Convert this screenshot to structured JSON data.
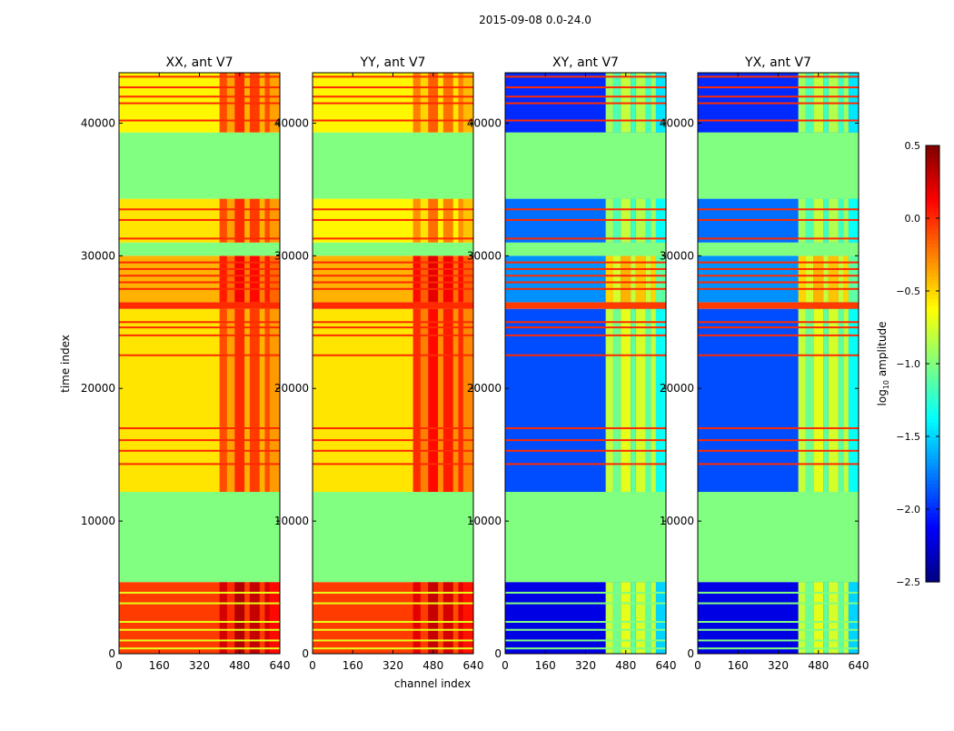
{
  "chart_data": {
    "type": "heatmap",
    "title": "2015-09-08 0.0-24.0",
    "xlabel": "channel index",
    "ylabel": "time index",
    "xlim": [
      0,
      640
    ],
    "ylim": [
      0,
      43800
    ],
    "xticks": [
      "0",
      "160",
      "320",
      "480",
      "640"
    ],
    "xtick_values": [
      0,
      160,
      320,
      480,
      640
    ],
    "yticks": [
      "0",
      "10000",
      "20000",
      "30000",
      "40000"
    ],
    "ytick_values": [
      0,
      10000,
      20000,
      30000,
      40000
    ],
    "colormap": "jet",
    "colorbar": {
      "label_main": "log",
      "label_sub": "10",
      "label_rest": " amplitude",
      "range": [
        -2.5,
        0.5
      ],
      "ticks": [
        "0.5",
        "0.0",
        "−0.5",
        "−1.0",
        "−1.5",
        "−2.0",
        "−2.5"
      ],
      "tick_values": [
        0.5,
        0.0,
        -0.5,
        -1.0,
        -1.5,
        -2.0,
        -2.5
      ]
    },
    "bright_channel_range": [
      400,
      600
    ],
    "panels": [
      {
        "title": "XX, ant V7",
        "segments": [
          [
            0,
            5400,
            -0.05,
            0.25
          ],
          [
            5400,
            12200,
            -1.0,
            -1.0
          ],
          [
            12200,
            26000,
            -0.55,
            -0.1
          ],
          [
            26000,
            26500,
            0.0,
            0.0
          ],
          [
            26500,
            30000,
            -0.4,
            0.05
          ],
          [
            30000,
            31000,
            -1.0,
            -1.0
          ],
          [
            31000,
            34300,
            -0.55,
            -0.1
          ],
          [
            34300,
            39300,
            -1.0,
            -1.0
          ],
          [
            39300,
            43800,
            -0.6,
            -0.1
          ]
        ]
      },
      {
        "title": "YY, ant V7",
        "segments": [
          [
            0,
            5400,
            -0.05,
            0.2
          ],
          [
            5400,
            12200,
            -1.0,
            -1.0
          ],
          [
            12200,
            26000,
            -0.55,
            0.0
          ],
          [
            26000,
            26500,
            0.0,
            0.0
          ],
          [
            26500,
            30000,
            -0.4,
            0.1
          ],
          [
            30000,
            31000,
            -1.0,
            -1.0
          ],
          [
            31000,
            34300,
            -0.6,
            -0.3
          ],
          [
            34300,
            39300,
            -1.0,
            -1.0
          ],
          [
            39300,
            43800,
            -0.6,
            -0.25
          ]
        ]
      },
      {
        "title": "XY, ant V7",
        "segments": [
          [
            0,
            5400,
            -2.2,
            -0.8
          ],
          [
            5400,
            12200,
            -1.0,
            -1.0
          ],
          [
            12200,
            26000,
            -1.9,
            -0.8
          ],
          [
            26000,
            26500,
            -0.05,
            -0.05
          ],
          [
            26500,
            30000,
            -1.7,
            -0.5
          ],
          [
            30000,
            31000,
            -1.0,
            -1.0
          ],
          [
            31000,
            34300,
            -1.8,
            -0.9
          ],
          [
            34300,
            39300,
            -1.0,
            -1.0
          ],
          [
            39300,
            43800,
            -2.0,
            -0.9
          ]
        ]
      },
      {
        "title": "YX, ant V7",
        "segments": [
          [
            0,
            5400,
            -2.2,
            -0.8
          ],
          [
            5400,
            12200,
            -1.0,
            -1.0
          ],
          [
            12200,
            26000,
            -1.9,
            -0.8
          ],
          [
            26000,
            26500,
            -0.05,
            -0.05
          ],
          [
            26500,
            30000,
            -1.7,
            -0.5
          ],
          [
            30000,
            31000,
            -1.0,
            -1.0
          ],
          [
            31000,
            34300,
            -1.8,
            -0.9
          ],
          [
            34300,
            39300,
            -1.0,
            -1.0
          ],
          [
            39300,
            43800,
            -2.0,
            -0.9
          ]
        ]
      }
    ],
    "rfi_lines": [
      14300,
      15300,
      16100,
      17000,
      22500,
      24000,
      24600,
      25000,
      27500,
      28000,
      28500,
      29000,
      29500,
      31300,
      32700,
      33500,
      40200,
      41500,
      42000,
      42700,
      43500
    ],
    "dropout_lines": [
      400,
      1000,
      1800,
      2400,
      3800,
      4600
    ]
  }
}
